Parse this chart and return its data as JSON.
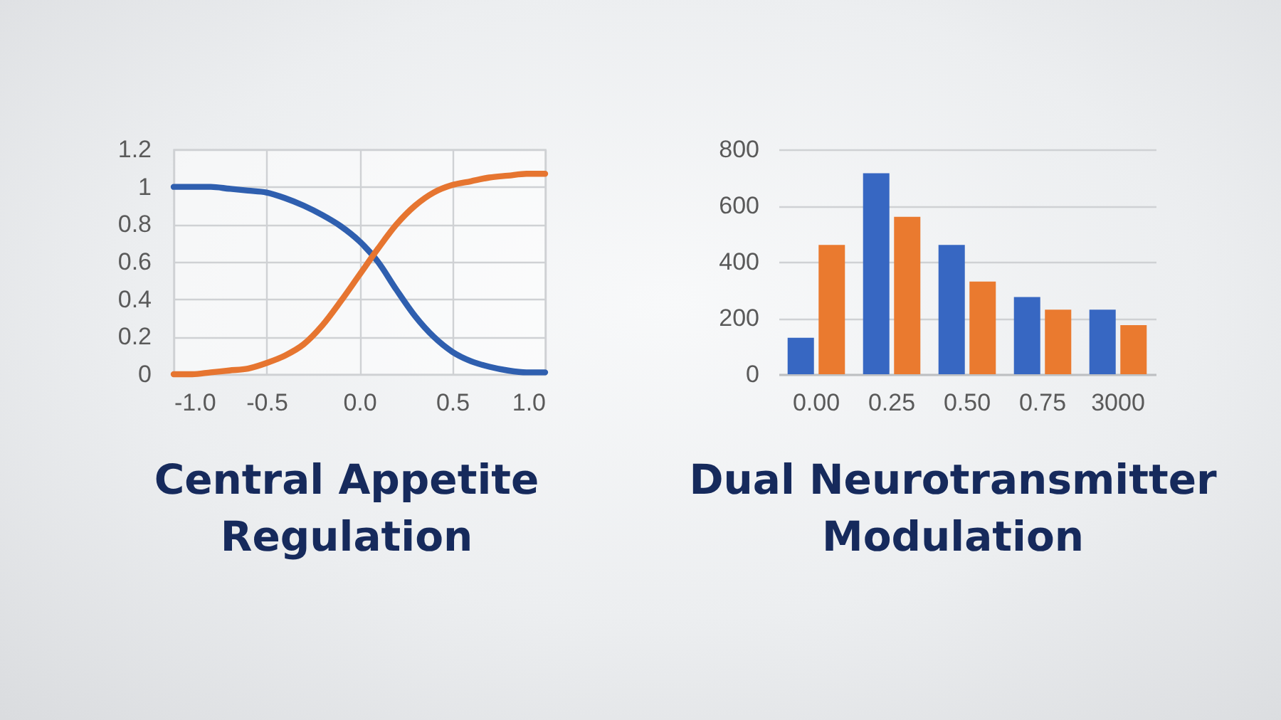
{
  "chart_data": [
    {
      "type": "line",
      "title": "Central Appetite Regulation",
      "x": [
        -1,
        -0.9,
        -0.8,
        -0.7,
        -0.6,
        -0.5,
        -0.4,
        -0.3,
        -0.2,
        -0.1,
        0,
        0.1,
        0.2,
        0.3,
        0.4,
        0.5,
        0.6,
        0.7,
        0.8,
        0.9,
        1
      ],
      "series": [
        {
          "color": "#2f5faf",
          "values": [
            1,
            1,
            1,
            0.99,
            0.98,
            0.97,
            0.94,
            0.9,
            0.85,
            0.79,
            0.71,
            0.6,
            0.45,
            0.31,
            0.2,
            0.12,
            0.07,
            0.04,
            0.02,
            0.01,
            0.01
          ]
        },
        {
          "color": "#e67530",
          "values": [
            0,
            0,
            0.01,
            0.02,
            0.03,
            0.06,
            0.1,
            0.16,
            0.26,
            0.39,
            0.53,
            0.67,
            0.8,
            0.9,
            0.97,
            1.01,
            1.03,
            1.05,
            1.06,
            1.07,
            1.07
          ]
        }
      ],
      "xlim": [
        -1,
        1
      ],
      "xticks": [
        {
          "value": -1,
          "label": "-1.0"
        },
        -0.5,
        {
          "value": 0,
          "label": "0.0"
        },
        0.5,
        {
          "value": 1,
          "label": "1.0"
        }
      ],
      "ylim": [
        0,
        1.2
      ],
      "yticks": [
        0,
        0.2,
        0.4,
        0.6,
        0.8,
        1,
        1.2
      ],
      "grid": true,
      "line_style": "solid"
    },
    {
      "type": "bar",
      "title": "Dual Neurotransmitter Modulation",
      "categories": [
        "0.00",
        "0.25",
        "0.50",
        "0.75",
        "3000"
      ],
      "series": [
        {
          "color": "#3767c2",
          "values": [
            130,
            715,
            460,
            275,
            230
          ]
        },
        {
          "color": "#ea7a2f",
          "values": [
            460,
            560,
            330,
            230,
            175
          ]
        }
      ],
      "ylim": [
        0,
        800
      ],
      "yticks": [
        0,
        200,
        400,
        600,
        800
      ],
      "grid": "y"
    }
  ]
}
